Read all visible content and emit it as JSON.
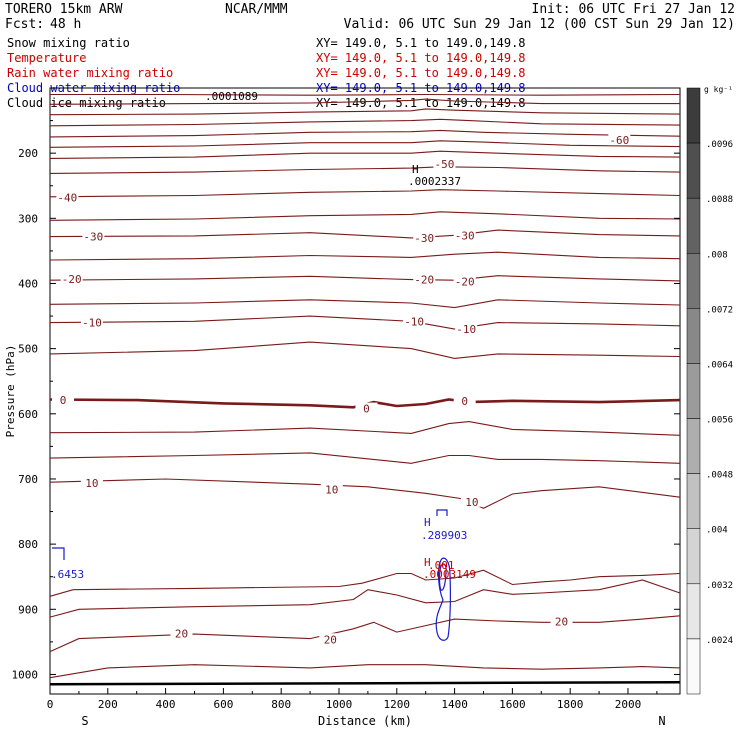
{
  "header": {
    "model": "TORERO  15km ARW",
    "org": "NCAR/MMM",
    "init": "Init: 06 UTC Fri 27 Jan 12",
    "fcst_label": "Fcst:",
    "fcst_value": "48 h",
    "valid": "Valid: 06 UTC Sun 29 Jan 12 (00 CST Sun 29 Jan 12)"
  },
  "fields": [
    {
      "name": "Snow mixing ratio",
      "xy": "XY= 149.0,  5.1 to 149.0,149.8",
      "color": "#000000"
    },
    {
      "name": "Temperature",
      "xy": "XY= 149.0,  5.1 to 149.0,149.8",
      "color": "#cc0000"
    },
    {
      "name": "Rain water mixing ratio",
      "xy": "XY= 149.0,  5.1 to 149.0,149.8",
      "color": "#cc0000"
    },
    {
      "name": "Cloud water mixing ratio",
      "xy": "XY= 149.0,  5.1 to 149.0,149.8",
      "color": "#0000cc"
    },
    {
      "name": "Cloud ice mixing ratio",
      "xy": "XY= 149.0,  5.1 to 149.0,149.8",
      "color": "#000000"
    }
  ],
  "colors": {
    "temperature": "#7a1a1a",
    "cloud_water": "#1a1acc",
    "rain": "#cc0000",
    "axis": "#000000",
    "ground": "#000000"
  },
  "colorbar": {
    "unit": "g kg⁻¹",
    "labels": [
      ".0096",
      ".0088",
      ".008",
      ".0072",
      ".0064",
      ".0056",
      ".0048",
      ".004",
      ".0032",
      ".0024"
    ],
    "levels": [
      0.0096,
      0.0088,
      0.008,
      0.0072,
      0.0064,
      0.0056,
      0.0048,
      0.004,
      0.0032,
      0.0024
    ]
  },
  "annotations": {
    "ice_top": ".0001089",
    "ice_max_H": "H",
    "ice_max": ".0002337",
    "cloud_H": "H",
    "cloud_max": ".289903",
    "rain_H": "H",
    "rain_001": ".001",
    "rain_max": ".0003149",
    "left_cloud": ".6453"
  },
  "chart_data": {
    "type": "line",
    "xlabel": "Distance (km)",
    "ylabel": "Pressure (hPa)",
    "xlim": [
      0,
      2180
    ],
    "ylim": [
      1030,
      100
    ],
    "x_ticks": [
      0,
      200,
      400,
      600,
      800,
      1000,
      1200,
      1400,
      1600,
      1800,
      2000
    ],
    "y_ticks": [
      200,
      300,
      400,
      500,
      600,
      700,
      800,
      900,
      1000
    ],
    "x_end_labels": {
      "left": "S",
      "right": "N"
    },
    "contour_labels": [
      {
        "text": "-60",
        "x": 1970,
        "p": 180
      },
      {
        "text": "-50",
        "x": 1365,
        "p": 217
      },
      {
        "text": "-40",
        "x": 60,
        "p": 268
      },
      {
        "text": "-30",
        "x": 150,
        "p": 328
      },
      {
        "text": "-30",
        "x": 1295,
        "p": 330
      },
      {
        "text": "-30",
        "x": 1435,
        "p": 326
      },
      {
        "text": "-20",
        "x": 75,
        "p": 393
      },
      {
        "text": "-20",
        "x": 1295,
        "p": 394
      },
      {
        "text": "-20",
        "x": 1435,
        "p": 397
      },
      {
        "text": "-10",
        "x": 145,
        "p": 460
      },
      {
        "text": "-10",
        "x": 1260,
        "p": 458
      },
      {
        "text": "-10",
        "x": 1440,
        "p": 470
      },
      {
        "text": "0",
        "x": 45,
        "p": 579
      },
      {
        "text": "0",
        "x": 1095,
        "p": 592
      },
      {
        "text": "0",
        "x": 1435,
        "p": 580
      },
      {
        "text": "10",
        "x": 145,
        "p": 706
      },
      {
        "text": "10",
        "x": 975,
        "p": 716
      },
      {
        "text": "10",
        "x": 1460,
        "p": 735
      },
      {
        "text": "20",
        "x": 455,
        "p": 937
      },
      {
        "text": "20",
        "x": 970,
        "p": 946
      },
      {
        "text": "20",
        "x": 1770,
        "p": 919
      }
    ],
    "series": [
      {
        "values": [
          [
            0,
            110
          ],
          [
            400,
            110
          ],
          [
            900,
            111
          ],
          [
            1300,
            110
          ],
          [
            1700,
            111
          ],
          [
            2180,
            110
          ]
        ]
      },
      {
        "values": [
          [
            0,
            125
          ],
          [
            500,
            124
          ],
          [
            900,
            123
          ],
          [
            1250,
            119
          ],
          [
            1300,
            117
          ],
          [
            1400,
            120
          ],
          [
            1700,
            124
          ],
          [
            2180,
            124
          ]
        ]
      },
      {
        "values": [
          [
            0,
            141
          ],
          [
            500,
            140
          ],
          [
            900,
            137
          ],
          [
            1250,
            135
          ],
          [
            1300,
            132
          ],
          [
            1400,
            134
          ],
          [
            1700,
            138
          ],
          [
            2180,
            140
          ]
        ]
      },
      {
        "values": [
          [
            0,
            158
          ],
          [
            500,
            156
          ],
          [
            900,
            152
          ],
          [
            1250,
            150
          ],
          [
            1350,
            148
          ],
          [
            1450,
            150
          ],
          [
            1700,
            155
          ],
          [
            2180,
            157
          ]
        ]
      },
      {
        "values": [
          [
            0,
            175
          ],
          [
            500,
            173
          ],
          [
            900,
            168
          ],
          [
            1250,
            167
          ],
          [
            1350,
            165
          ],
          [
            1500,
            168
          ],
          [
            1800,
            171
          ],
          [
            2180,
            174
          ]
        ]
      },
      {
        "values": [
          [
            0,
            191
          ],
          [
            500,
            189
          ],
          [
            900,
            184
          ],
          [
            1250,
            184
          ],
          [
            1350,
            181
          ],
          [
            1500,
            183
          ],
          [
            1800,
            188
          ],
          [
            2180,
            190
          ]
        ]
      },
      {
        "values": [
          [
            0,
            208
          ],
          [
            500,
            206
          ],
          [
            900,
            200
          ],
          [
            1250,
            200
          ],
          [
            1350,
            197
          ],
          [
            1550,
            200
          ],
          [
            1900,
            205
          ],
          [
            2180,
            206
          ]
        ]
      },
      {
        "values": [
          [
            0,
            231
          ],
          [
            500,
            229
          ],
          [
            900,
            225
          ],
          [
            1250,
            223
          ],
          [
            1350,
            221
          ],
          [
            1550,
            222
          ],
          [
            1900,
            227
          ],
          [
            2180,
            229
          ]
        ]
      },
      {
        "values": [
          [
            0,
            267
          ],
          [
            500,
            265
          ],
          [
            900,
            260
          ],
          [
            1250,
            258
          ],
          [
            1350,
            256
          ],
          [
            1550,
            258
          ],
          [
            1900,
            262
          ],
          [
            2180,
            265
          ]
        ]
      },
      {
        "values": [
          [
            0,
            303
          ],
          [
            500,
            301
          ],
          [
            900,
            296
          ],
          [
            1250,
            294
          ],
          [
            1350,
            290
          ],
          [
            1550,
            293
          ],
          [
            1900,
            300
          ],
          [
            2180,
            301
          ]
        ]
      },
      {
        "values": [
          [
            0,
            328
          ],
          [
            500,
            327
          ],
          [
            900,
            322
          ],
          [
            1250,
            330
          ],
          [
            1400,
            326
          ],
          [
            1550,
            318
          ],
          [
            1900,
            325
          ],
          [
            2180,
            327
          ]
        ]
      },
      {
        "values": [
          [
            0,
            364
          ],
          [
            500,
            362
          ],
          [
            900,
            357
          ],
          [
            1250,
            360
          ],
          [
            1400,
            355
          ],
          [
            1550,
            352
          ],
          [
            1900,
            360
          ],
          [
            2180,
            362
          ]
        ]
      },
      {
        "values": [
          [
            0,
            395
          ],
          [
            500,
            393
          ],
          [
            900,
            389
          ],
          [
            1250,
            394
          ],
          [
            1400,
            395
          ],
          [
            1550,
            388
          ],
          [
            1900,
            393
          ],
          [
            2180,
            396
          ]
        ]
      },
      {
        "values": [
          [
            0,
            432
          ],
          [
            500,
            430
          ],
          [
            900,
            425
          ],
          [
            1250,
            430
          ],
          [
            1400,
            437
          ],
          [
            1550,
            425
          ],
          [
            1900,
            430
          ],
          [
            2180,
            433
          ]
        ]
      },
      {
        "values": [
          [
            0,
            460
          ],
          [
            500,
            458
          ],
          [
            900,
            450
          ],
          [
            1250,
            458
          ],
          [
            1400,
            470
          ],
          [
            1550,
            460
          ],
          [
            1900,
            462
          ],
          [
            2180,
            465
          ]
        ]
      },
      {
        "values": [
          [
            0,
            508
          ],
          [
            500,
            503
          ],
          [
            900,
            490
          ],
          [
            1250,
            500
          ],
          [
            1400,
            515
          ],
          [
            1550,
            508
          ],
          [
            1900,
            510
          ],
          [
            2180,
            512
          ]
        ]
      },
      {
        "name": "0",
        "values": [
          [
            0,
            578
          ],
          [
            300,
            579
          ],
          [
            600,
            584
          ],
          [
            900,
            587
          ],
          [
            1050,
            590
          ],
          [
            1120,
            582
          ],
          [
            1200,
            588
          ],
          [
            1300,
            585
          ],
          [
            1380,
            578
          ],
          [
            1450,
            582
          ],
          [
            1600,
            580
          ],
          [
            1900,
            582
          ],
          [
            2180,
            579
          ]
        ]
      },
      {
        "values": [
          [
            0,
            629
          ],
          [
            500,
            628
          ],
          [
            900,
            622
          ],
          [
            1250,
            630
          ],
          [
            1380,
            615
          ],
          [
            1450,
            612
          ],
          [
            1600,
            624
          ],
          [
            1900,
            628
          ],
          [
            2180,
            633
          ]
        ]
      },
      {
        "values": [
          [
            0,
            668
          ],
          [
            500,
            664
          ],
          [
            900,
            660
          ],
          [
            1250,
            676
          ],
          [
            1380,
            664
          ],
          [
            1450,
            664
          ],
          [
            1550,
            670
          ],
          [
            1700,
            670
          ],
          [
            1900,
            672
          ],
          [
            2180,
            676
          ]
        ]
      },
      {
        "values": [
          [
            0,
            705
          ],
          [
            400,
            700
          ],
          [
            900,
            708
          ],
          [
            1100,
            712
          ],
          [
            1300,
            722
          ],
          [
            1420,
            730
          ],
          [
            1500,
            745
          ],
          [
            1600,
            723
          ],
          [
            1700,
            718
          ],
          [
            1900,
            712
          ],
          [
            2180,
            728
          ]
        ]
      },
      {
        "values": [
          [
            0,
            880
          ],
          [
            80,
            870
          ],
          [
            500,
            868
          ],
          [
            1000,
            865
          ],
          [
            1080,
            860
          ],
          [
            1200,
            845
          ],
          [
            1250,
            845
          ],
          [
            1300,
            855
          ],
          [
            1400,
            852
          ],
          [
            1500,
            840
          ],
          [
            1600,
            862
          ],
          [
            1700,
            858
          ],
          [
            1800,
            855
          ],
          [
            1900,
            850
          ],
          [
            2050,
            848
          ],
          [
            2180,
            845
          ]
        ]
      },
      {
        "values": [
          [
            0,
            912
          ],
          [
            100,
            900
          ],
          [
            500,
            896
          ],
          [
            900,
            893
          ],
          [
            1050,
            885
          ],
          [
            1100,
            870
          ],
          [
            1200,
            878
          ],
          [
            1300,
            890
          ],
          [
            1400,
            888
          ],
          [
            1500,
            870
          ],
          [
            1600,
            877
          ],
          [
            1700,
            875
          ],
          [
            1900,
            870
          ],
          [
            2050,
            855
          ],
          [
            2180,
            875
          ]
        ]
      },
      {
        "values": [
          [
            0,
            965
          ],
          [
            100,
            945
          ],
          [
            500,
            938
          ],
          [
            900,
            945
          ],
          [
            1050,
            930
          ],
          [
            1120,
            920
          ],
          [
            1200,
            935
          ],
          [
            1300,
            925
          ],
          [
            1400,
            915
          ],
          [
            1550,
            918
          ],
          [
            1700,
            920
          ],
          [
            1900,
            920
          ],
          [
            2050,
            915
          ],
          [
            2180,
            910
          ]
        ]
      },
      {
        "values": [
          [
            0,
            1005
          ],
          [
            200,
            990
          ],
          [
            500,
            985
          ],
          [
            900,
            990
          ],
          [
            1100,
            985
          ],
          [
            1300,
            985
          ],
          [
            1500,
            990
          ],
          [
            1700,
            992
          ],
          [
            1900,
            990
          ],
          [
            2050,
            988
          ],
          [
            2180,
            990
          ]
        ]
      }
    ]
  }
}
